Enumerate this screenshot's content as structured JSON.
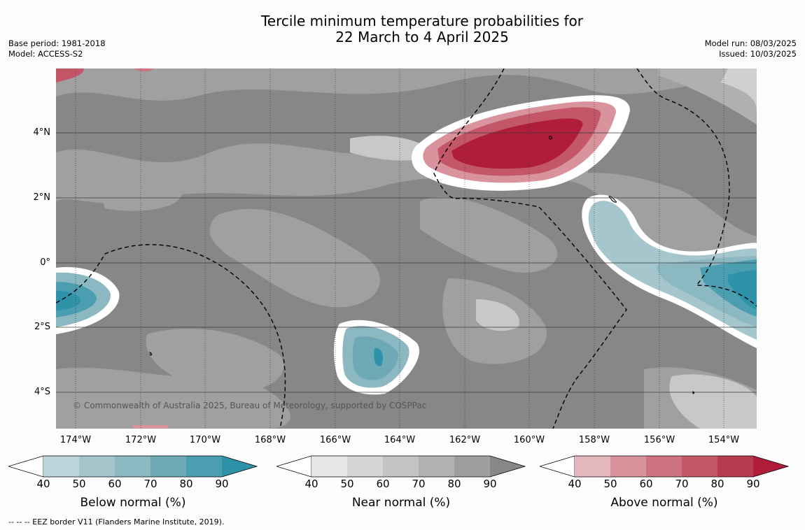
{
  "title": {
    "line1": "Tercile minimum temperature probabilities for",
    "line2": "22 March to 4 April 2025"
  },
  "meta_left": {
    "base_period": "Base period: 1981-2018",
    "model": "Model: ACCESS-S2"
  },
  "meta_right": {
    "model_run": "Model run: 08/03/2025",
    "issued": "Issued: 10/03/2025"
  },
  "map": {
    "lat_labels": [
      "4°N",
      "2°N",
      "0°",
      "2°S",
      "4°S"
    ],
    "lon_labels": [
      "174°W",
      "172°W",
      "170°W",
      "168°W",
      "166°W",
      "164°W",
      "162°W",
      "160°W",
      "158°W",
      "156°W",
      "154°W"
    ],
    "copyright": "© Commonwealth of Australia 2025, Bureau of Meteorology, supported by COSPPac",
    "colors": {
      "near_base": "#878787",
      "below_max": "#2e93a8",
      "above_max": "#b01d3a"
    }
  },
  "colorbars": [
    {
      "title": "Below normal (%)",
      "ticks": [
        "40",
        "50",
        "60",
        "70",
        "80",
        "90"
      ],
      "colors": [
        "#bcd4da",
        "#a5c6cd",
        "#8cb8c1",
        "#6eaab6",
        "#4b9eb0",
        "#2e93a8"
      ]
    },
    {
      "title": "Near normal (%)",
      "ticks": [
        "40",
        "50",
        "60",
        "70",
        "80",
        "90"
      ],
      "colors": [
        "#e6e6e6",
        "#d5d5d5",
        "#c4c4c4",
        "#b1b1b1",
        "#9f9f9f",
        "#878787"
      ]
    },
    {
      "title": "Above normal (%)",
      "ticks": [
        "40",
        "50",
        "60",
        "70",
        "80",
        "90"
      ],
      "colors": [
        "#e4b7be",
        "#d8939d",
        "#cd7480",
        "#c35767",
        "#b83a50",
        "#b01d3a"
      ]
    }
  ],
  "footnote": "-- -- -- EEZ border V11 (Flanders Marine Institute, 2019)."
}
